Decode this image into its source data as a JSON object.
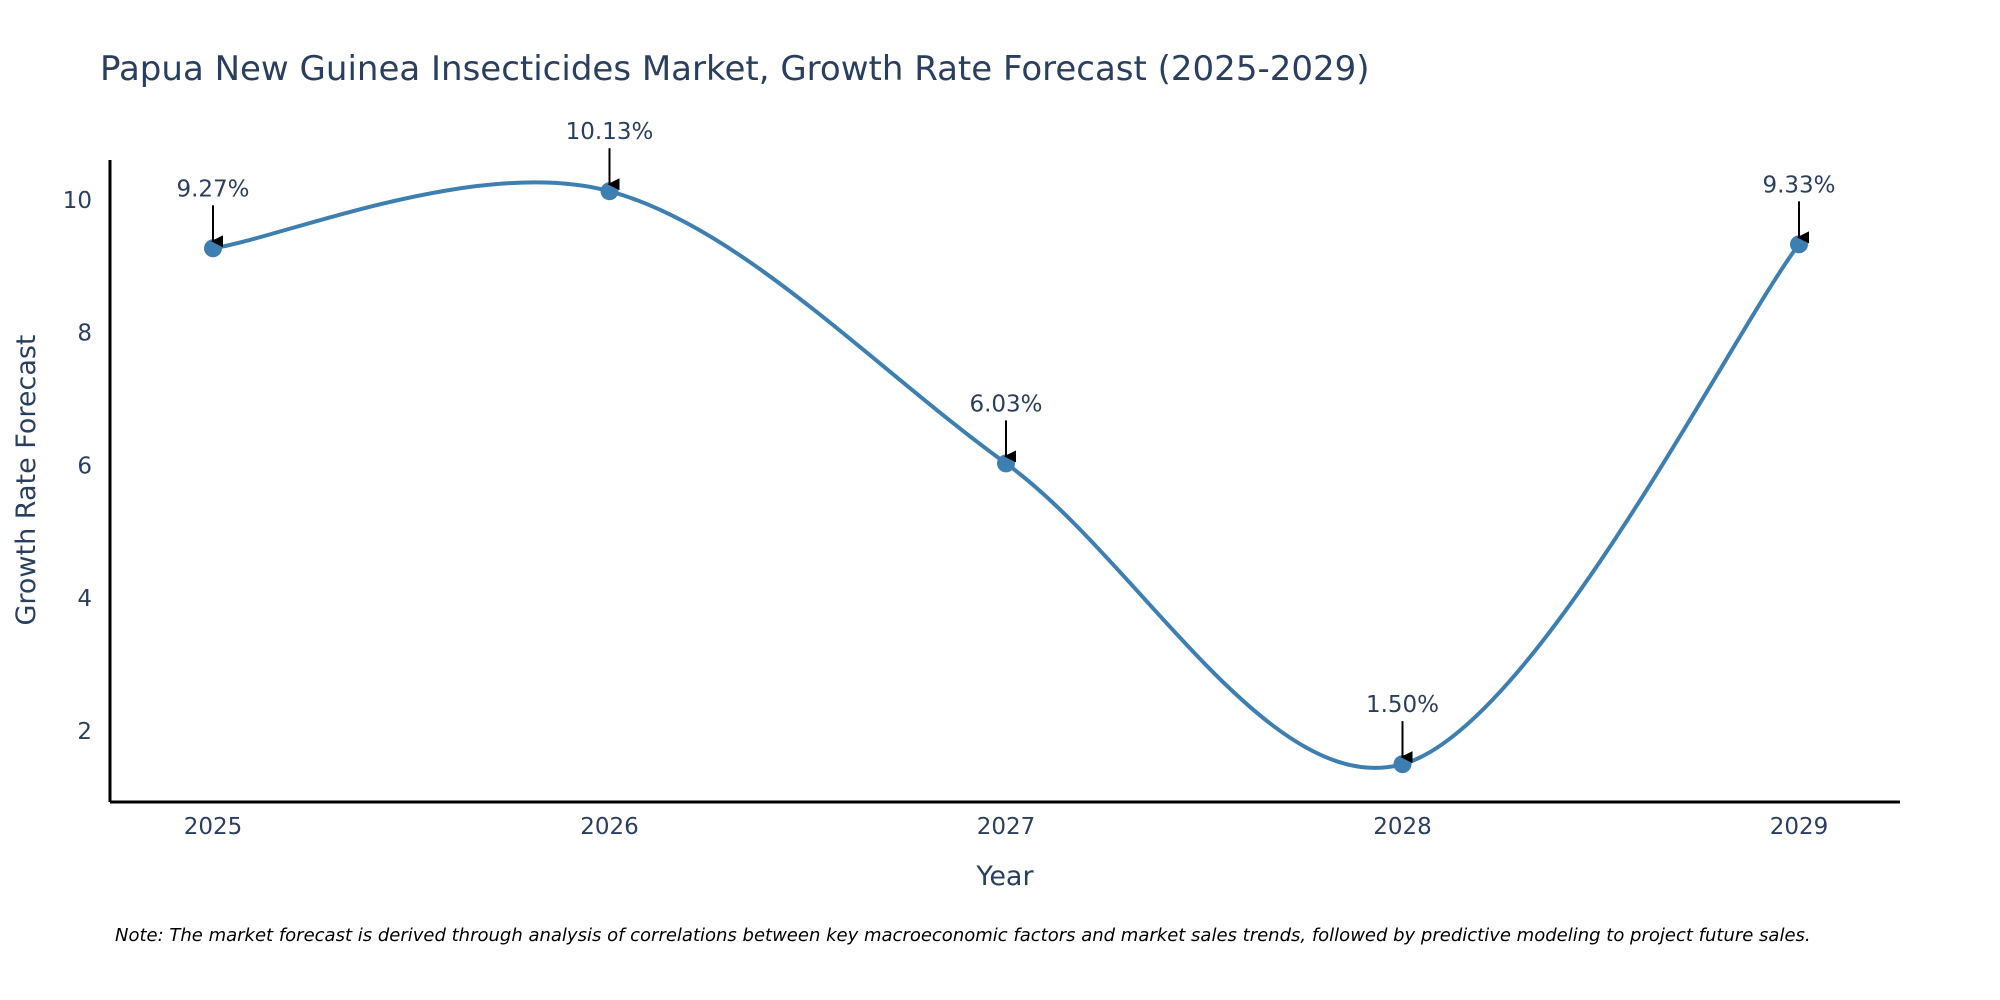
{
  "colors": {
    "line": "#3d7fb1",
    "marker": "#3d7fb1",
    "axis": "#000000",
    "text": "#2a3f5f",
    "arrow": "#000000"
  },
  "chart_data": {
    "type": "line",
    "title": "Papua New Guinea Insecticides Market, Growth Rate Forecast (2025-2029)",
    "xlabel": "Year",
    "ylabel": "Growth Rate Forecast",
    "categories": [
      "2025",
      "2026",
      "2027",
      "2028",
      "2029"
    ],
    "series": [
      {
        "name": "Growth Rate Forecast",
        "values": [
          9.27,
          10.13,
          6.03,
          1.5,
          9.33
        ]
      }
    ],
    "data_labels": [
      "9.27%",
      "10.13%",
      "6.03%",
      "1.50%",
      "9.33%"
    ],
    "yticks": [
      2,
      4,
      6,
      8,
      10
    ],
    "ylim": [
      0.93,
      10.6
    ],
    "line_shape": "spline",
    "grid": false,
    "note": "Note: The market forecast is derived through analysis of correlations between key macroeconomic factors and market sales trends, followed by predictive modeling to project future sales."
  }
}
